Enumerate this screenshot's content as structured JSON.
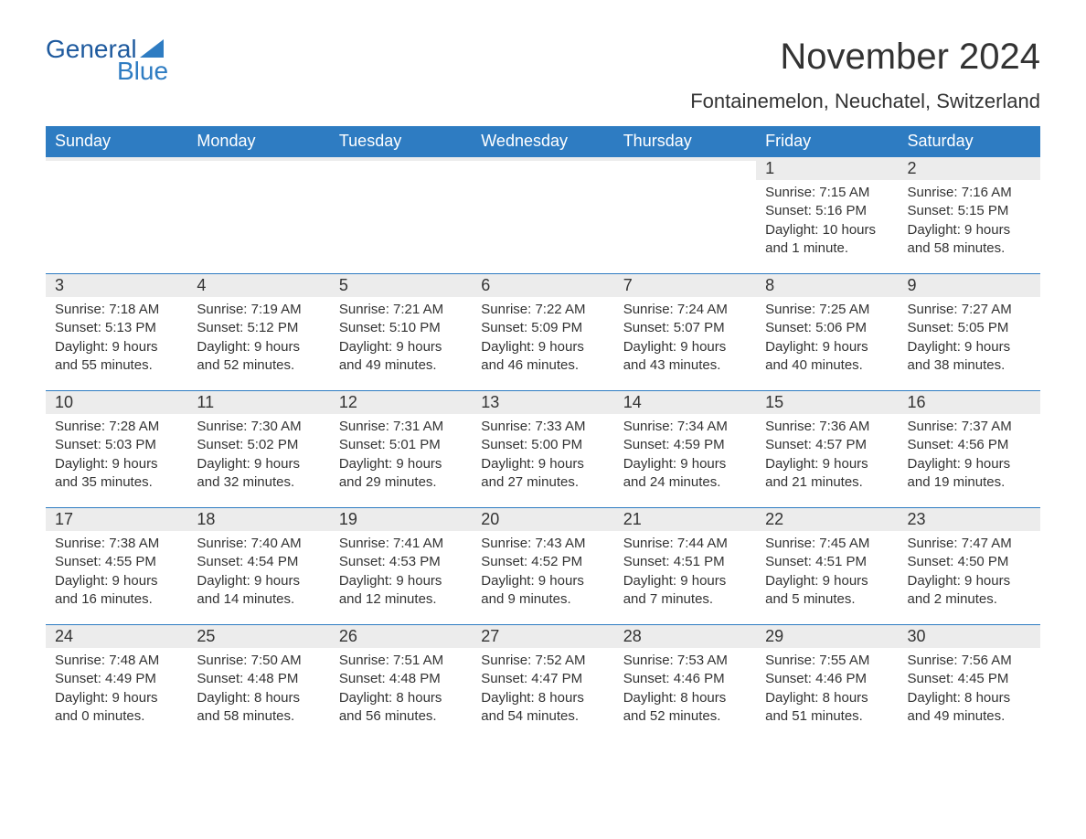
{
  "brand": {
    "line1": "General",
    "line2": "Blue"
  },
  "title": "November 2024",
  "subtitle": "Fontainemelon, Neuchatel, Switzerland",
  "colors": {
    "header_bg": "#2e7cc2",
    "header_text": "#ffffff",
    "row_stripe": "#ececec",
    "rule": "#2e7cc2",
    "text": "#333333",
    "background": "#ffffff",
    "logo_dark": "#1e5a9e",
    "logo_light": "#2e7cc2"
  },
  "typography": {
    "title_fontsize": 40,
    "subtitle_fontsize": 22,
    "header_fontsize": 18,
    "daynum_fontsize": 18,
    "body_fontsize": 15,
    "font_family": "Arial"
  },
  "weekdays": [
    "Sunday",
    "Monday",
    "Tuesday",
    "Wednesday",
    "Thursday",
    "Friday",
    "Saturday"
  ],
  "weeks": [
    [
      null,
      null,
      null,
      null,
      null,
      {
        "day": "1",
        "sunrise": "Sunrise: 7:15 AM",
        "sunset": "Sunset: 5:16 PM",
        "daylight1": "Daylight: 10 hours",
        "daylight2": "and 1 minute."
      },
      {
        "day": "2",
        "sunrise": "Sunrise: 7:16 AM",
        "sunset": "Sunset: 5:15 PM",
        "daylight1": "Daylight: 9 hours",
        "daylight2": "and 58 minutes."
      }
    ],
    [
      {
        "day": "3",
        "sunrise": "Sunrise: 7:18 AM",
        "sunset": "Sunset: 5:13 PM",
        "daylight1": "Daylight: 9 hours",
        "daylight2": "and 55 minutes."
      },
      {
        "day": "4",
        "sunrise": "Sunrise: 7:19 AM",
        "sunset": "Sunset: 5:12 PM",
        "daylight1": "Daylight: 9 hours",
        "daylight2": "and 52 minutes."
      },
      {
        "day": "5",
        "sunrise": "Sunrise: 7:21 AM",
        "sunset": "Sunset: 5:10 PM",
        "daylight1": "Daylight: 9 hours",
        "daylight2": "and 49 minutes."
      },
      {
        "day": "6",
        "sunrise": "Sunrise: 7:22 AM",
        "sunset": "Sunset: 5:09 PM",
        "daylight1": "Daylight: 9 hours",
        "daylight2": "and 46 minutes."
      },
      {
        "day": "7",
        "sunrise": "Sunrise: 7:24 AM",
        "sunset": "Sunset: 5:07 PM",
        "daylight1": "Daylight: 9 hours",
        "daylight2": "and 43 minutes."
      },
      {
        "day": "8",
        "sunrise": "Sunrise: 7:25 AM",
        "sunset": "Sunset: 5:06 PM",
        "daylight1": "Daylight: 9 hours",
        "daylight2": "and 40 minutes."
      },
      {
        "day": "9",
        "sunrise": "Sunrise: 7:27 AM",
        "sunset": "Sunset: 5:05 PM",
        "daylight1": "Daylight: 9 hours",
        "daylight2": "and 38 minutes."
      }
    ],
    [
      {
        "day": "10",
        "sunrise": "Sunrise: 7:28 AM",
        "sunset": "Sunset: 5:03 PM",
        "daylight1": "Daylight: 9 hours",
        "daylight2": "and 35 minutes."
      },
      {
        "day": "11",
        "sunrise": "Sunrise: 7:30 AM",
        "sunset": "Sunset: 5:02 PM",
        "daylight1": "Daylight: 9 hours",
        "daylight2": "and 32 minutes."
      },
      {
        "day": "12",
        "sunrise": "Sunrise: 7:31 AM",
        "sunset": "Sunset: 5:01 PM",
        "daylight1": "Daylight: 9 hours",
        "daylight2": "and 29 minutes."
      },
      {
        "day": "13",
        "sunrise": "Sunrise: 7:33 AM",
        "sunset": "Sunset: 5:00 PM",
        "daylight1": "Daylight: 9 hours",
        "daylight2": "and 27 minutes."
      },
      {
        "day": "14",
        "sunrise": "Sunrise: 7:34 AM",
        "sunset": "Sunset: 4:59 PM",
        "daylight1": "Daylight: 9 hours",
        "daylight2": "and 24 minutes."
      },
      {
        "day": "15",
        "sunrise": "Sunrise: 7:36 AM",
        "sunset": "Sunset: 4:57 PM",
        "daylight1": "Daylight: 9 hours",
        "daylight2": "and 21 minutes."
      },
      {
        "day": "16",
        "sunrise": "Sunrise: 7:37 AM",
        "sunset": "Sunset: 4:56 PM",
        "daylight1": "Daylight: 9 hours",
        "daylight2": "and 19 minutes."
      }
    ],
    [
      {
        "day": "17",
        "sunrise": "Sunrise: 7:38 AM",
        "sunset": "Sunset: 4:55 PM",
        "daylight1": "Daylight: 9 hours",
        "daylight2": "and 16 minutes."
      },
      {
        "day": "18",
        "sunrise": "Sunrise: 7:40 AM",
        "sunset": "Sunset: 4:54 PM",
        "daylight1": "Daylight: 9 hours",
        "daylight2": "and 14 minutes."
      },
      {
        "day": "19",
        "sunrise": "Sunrise: 7:41 AM",
        "sunset": "Sunset: 4:53 PM",
        "daylight1": "Daylight: 9 hours",
        "daylight2": "and 12 minutes."
      },
      {
        "day": "20",
        "sunrise": "Sunrise: 7:43 AM",
        "sunset": "Sunset: 4:52 PM",
        "daylight1": "Daylight: 9 hours",
        "daylight2": "and 9 minutes."
      },
      {
        "day": "21",
        "sunrise": "Sunrise: 7:44 AM",
        "sunset": "Sunset: 4:51 PM",
        "daylight1": "Daylight: 9 hours",
        "daylight2": "and 7 minutes."
      },
      {
        "day": "22",
        "sunrise": "Sunrise: 7:45 AM",
        "sunset": "Sunset: 4:51 PM",
        "daylight1": "Daylight: 9 hours",
        "daylight2": "and 5 minutes."
      },
      {
        "day": "23",
        "sunrise": "Sunrise: 7:47 AM",
        "sunset": "Sunset: 4:50 PM",
        "daylight1": "Daylight: 9 hours",
        "daylight2": "and 2 minutes."
      }
    ],
    [
      {
        "day": "24",
        "sunrise": "Sunrise: 7:48 AM",
        "sunset": "Sunset: 4:49 PM",
        "daylight1": "Daylight: 9 hours",
        "daylight2": "and 0 minutes."
      },
      {
        "day": "25",
        "sunrise": "Sunrise: 7:50 AM",
        "sunset": "Sunset: 4:48 PM",
        "daylight1": "Daylight: 8 hours",
        "daylight2": "and 58 minutes."
      },
      {
        "day": "26",
        "sunrise": "Sunrise: 7:51 AM",
        "sunset": "Sunset: 4:48 PM",
        "daylight1": "Daylight: 8 hours",
        "daylight2": "and 56 minutes."
      },
      {
        "day": "27",
        "sunrise": "Sunrise: 7:52 AM",
        "sunset": "Sunset: 4:47 PM",
        "daylight1": "Daylight: 8 hours",
        "daylight2": "and 54 minutes."
      },
      {
        "day": "28",
        "sunrise": "Sunrise: 7:53 AM",
        "sunset": "Sunset: 4:46 PM",
        "daylight1": "Daylight: 8 hours",
        "daylight2": "and 52 minutes."
      },
      {
        "day": "29",
        "sunrise": "Sunrise: 7:55 AM",
        "sunset": "Sunset: 4:46 PM",
        "daylight1": "Daylight: 8 hours",
        "daylight2": "and 51 minutes."
      },
      {
        "day": "30",
        "sunrise": "Sunrise: 7:56 AM",
        "sunset": "Sunset: 4:45 PM",
        "daylight1": "Daylight: 8 hours",
        "daylight2": "and 49 minutes."
      }
    ]
  ]
}
